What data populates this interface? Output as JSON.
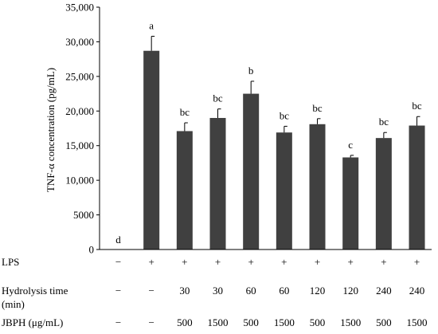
{
  "chart_data": {
    "type": "bar",
    "ylabel": "TNF-α concentration (pg/mL)",
    "ylim": [
      0,
      35000
    ],
    "yticks": [
      "0",
      "5000",
      "10,000",
      "15,000",
      "20,000",
      "25,000",
      "30,000",
      "35,000"
    ],
    "ytick_values": [
      0,
      5000,
      10000,
      15000,
      20000,
      25000,
      30000,
      35000
    ],
    "grid": false,
    "bar_color": "#404040",
    "values": [
      0,
      28700,
      17100,
      19000,
      22500,
      16900,
      18100,
      13300,
      16100,
      17900
    ],
    "errors": [
      0,
      2100,
      1200,
      1300,
      1800,
      900,
      800,
      300,
      800,
      1300
    ],
    "significance": [
      "d",
      "a",
      "bc",
      "bc",
      "b",
      "bc",
      "bc",
      "c",
      "bc",
      "bc"
    ],
    "conditions": [
      {
        "label": "LPS",
        "values": [
          "−",
          "+",
          "+",
          "+",
          "+",
          "+",
          "+",
          "+",
          "+",
          "+"
        ]
      },
      {
        "label": "Hydrolysis time",
        "label_line2": "(min)",
        "values": [
          "−",
          "−",
          "30",
          "30",
          "60",
          "60",
          "120",
          "120",
          "240",
          "240"
        ]
      },
      {
        "label": "JBPH (μg/mL)",
        "values": [
          "−",
          "−",
          "500",
          "1500",
          "500",
          "1500",
          "500",
          "1500",
          "500",
          "1500"
        ]
      }
    ]
  }
}
